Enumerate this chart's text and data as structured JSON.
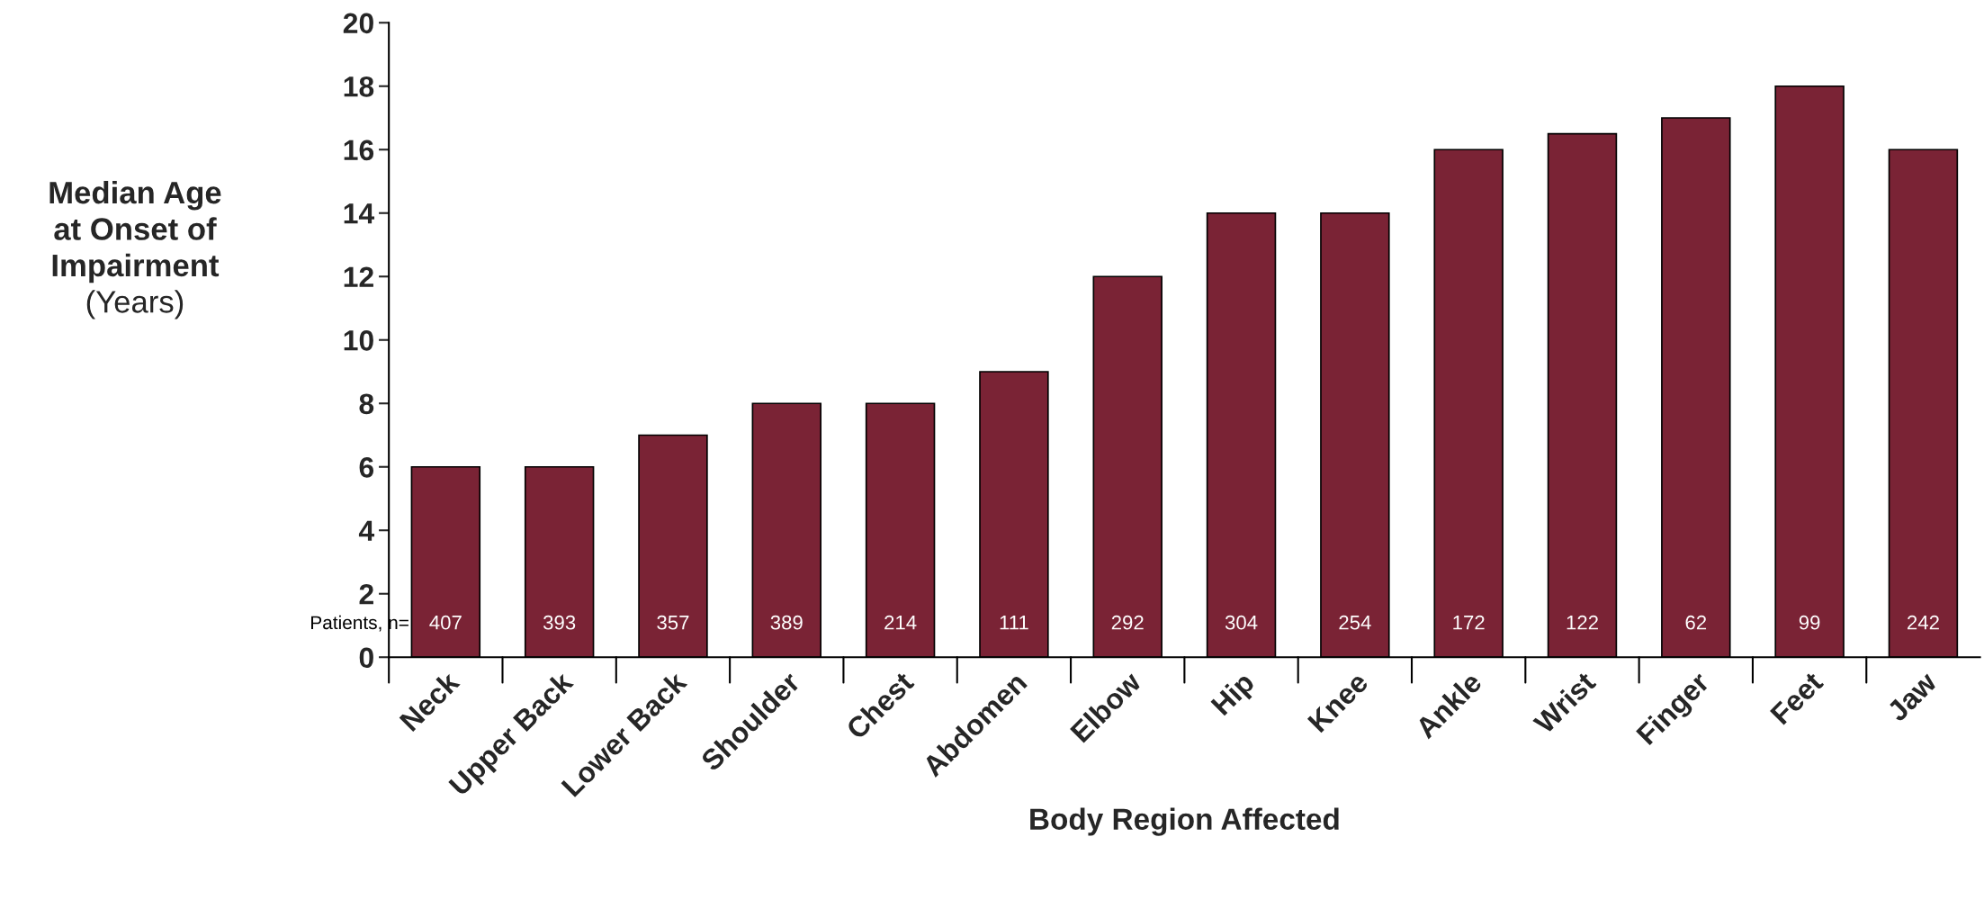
{
  "chart_data": {
    "type": "bar",
    "categories": [
      "Neck",
      "Upper Back",
      "Lower Back",
      "Shoulder",
      "Chest",
      "Abdomen",
      "Elbow",
      "Hip",
      "Knee",
      "Ankle",
      "Wrist",
      "Finger",
      "Feet",
      "Jaw"
    ],
    "values": [
      6,
      6,
      7,
      8,
      8,
      9,
      12,
      14,
      14,
      16,
      16.5,
      17,
      18,
      16
    ],
    "color": "#7a2335",
    "xlabel": "Body Region Affected",
    "ylabel": "Median Age\nat Onset of\nImpairment\n(Years)",
    "annotations": [
      "Patients, n=",
      "407",
      "393",
      "357",
      "389",
      "214",
      "111",
      "292",
      "304",
      "254",
      "172",
      "122",
      "62",
      "99",
      "242"
    ],
    "ylim": [
      0,
      20
    ],
    "yticks": [
      0,
      2,
      4,
      6,
      8,
      10,
      12,
      14,
      16,
      18,
      20
    ],
    "grid": false,
    "legend": false
  }
}
